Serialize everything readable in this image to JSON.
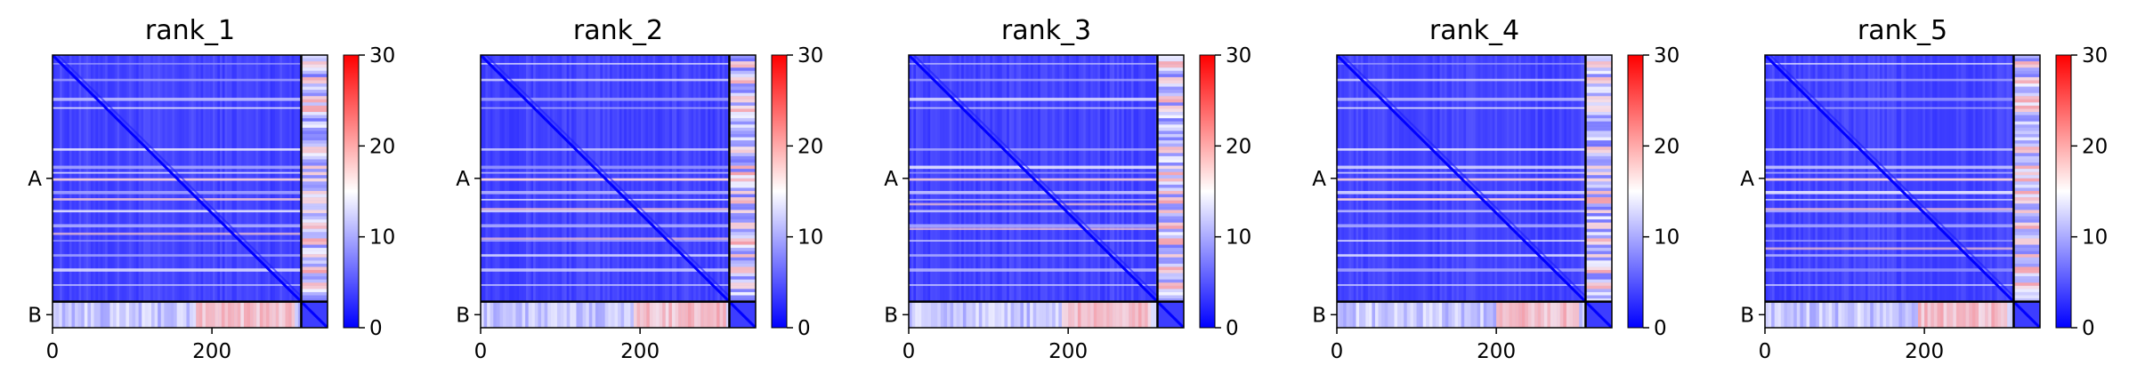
{
  "chart_data": [
    {
      "type": "heatmap",
      "title": "rank_1",
      "chains": [
        "A",
        "B"
      ],
      "chain_boundary": 312,
      "length": 345,
      "xticks": [
        0,
        200
      ],
      "colorbar": {
        "min": 0,
        "max": 30,
        "ticks": [
          0,
          10,
          20,
          30
        ],
        "colormap": "bwr"
      },
      "row_stripes": [
        10,
        30,
        54,
        66,
        118,
        140,
        148,
        156,
        172,
        182,
        196,
        214,
        234,
        252,
        270,
        290
      ],
      "band_rows": [
        0.5,
        0.58,
        0.72
      ],
      "chainB_hot_range": [
        180,
        300
      ]
    },
    {
      "type": "heatmap",
      "title": "rank_2",
      "chains": [
        "A",
        "B"
      ],
      "chain_boundary": 312,
      "length": 345,
      "xticks": [
        0,
        200
      ],
      "colorbar": {
        "min": 0,
        "max": 30,
        "ticks": [
          0,
          10,
          20,
          30
        ],
        "colormap": "bwr"
      },
      "row_stripes": [
        10,
        30,
        54,
        66,
        118,
        140,
        148,
        156,
        172,
        182,
        196,
        214,
        234,
        252,
        270,
        290
      ],
      "band_rows": [
        0.5,
        0.62,
        0.74
      ],
      "chainB_hot_range": [
        190,
        305
      ]
    },
    {
      "type": "heatmap",
      "title": "rank_3",
      "chains": [
        "A",
        "B"
      ],
      "chain_boundary": 312,
      "length": 345,
      "xticks": [
        0,
        200
      ],
      "colorbar": {
        "min": 0,
        "max": 30,
        "ticks": [
          0,
          10,
          20,
          30
        ],
        "colormap": "bwr"
      },
      "row_stripes": [
        10,
        30,
        54,
        66,
        118,
        140,
        148,
        156,
        172,
        182,
        196,
        214,
        234,
        252,
        270,
        290
      ],
      "band_rows": [
        0.5,
        0.6,
        0.7
      ],
      "chainB_hot_range": [
        190,
        300
      ]
    },
    {
      "type": "heatmap",
      "title": "rank_4",
      "chains": [
        "A",
        "B"
      ],
      "chain_boundary": 312,
      "length": 345,
      "xticks": [
        0,
        200
      ],
      "colorbar": {
        "min": 0,
        "max": 30,
        "ticks": [
          0,
          10,
          20,
          30
        ],
        "colormap": "bwr"
      },
      "row_stripes": [
        10,
        30,
        54,
        66,
        118,
        140,
        148,
        156,
        172,
        182,
        196,
        214,
        234,
        252,
        270,
        290
      ],
      "band_rows": [
        0.5,
        0.58
      ],
      "chainB_hot_range": [
        200,
        300
      ]
    },
    {
      "type": "heatmap",
      "title": "rank_5",
      "chains": [
        "A",
        "B"
      ],
      "chain_boundary": 312,
      "length": 345,
      "xticks": [
        0,
        200
      ],
      "colorbar": {
        "min": 0,
        "max": 30,
        "ticks": [
          0,
          10,
          20,
          30
        ],
        "colormap": "bwr"
      },
      "row_stripes": [
        10,
        30,
        54,
        66,
        118,
        140,
        148,
        156,
        172,
        182,
        196,
        214,
        234,
        252,
        270,
        290
      ],
      "band_rows": [
        0.5,
        0.62,
        0.78
      ],
      "chainB_hot_range": [
        190,
        300
      ]
    }
  ]
}
